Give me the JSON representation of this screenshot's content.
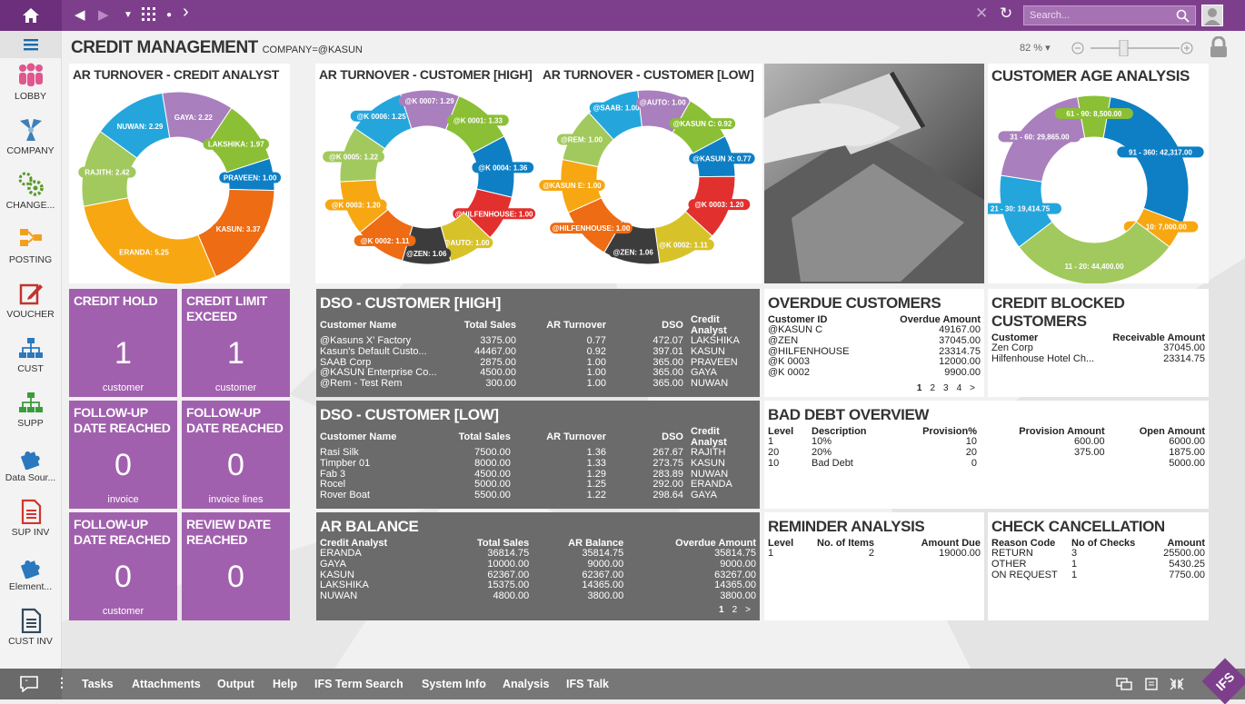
{
  "topbar": {
    "search_placeholder": "Search..."
  },
  "sidebar": {
    "items": [
      {
        "label": "LOBBY",
        "icon": "people-icon"
      },
      {
        "label": "COMPANY",
        "icon": "company-icon"
      },
      {
        "label": "CHANGE...",
        "icon": "gears-icon"
      },
      {
        "label": "POSTING",
        "icon": "posting-icon"
      },
      {
        "label": "VOUCHER",
        "icon": "edit-icon"
      },
      {
        "label": "CUST",
        "icon": "hierarchy-icon"
      },
      {
        "label": "SUPP",
        "icon": "hierarchy-icon"
      },
      {
        "label": "Data Sour...",
        "icon": "puzzle-icon"
      },
      {
        "label": "SUP INV",
        "icon": "document-icon"
      },
      {
        "label": "Element...",
        "icon": "puzzle-icon"
      },
      {
        "label": "CUST INV",
        "icon": "document-icon"
      }
    ]
  },
  "page": {
    "title": "CREDIT MANAGEMENT",
    "context": "COMPANY=@KASUN",
    "zoom": "82 %"
  },
  "charts": {
    "analyst": {
      "title": "AR TURNOVER  - CREDIT  ANALYST"
    },
    "high": {
      "title": "AR TURNOVER - CUSTOMER [HIGH]"
    },
    "low": {
      "title": "AR TURNOVER - CUSTOMER [LOW]"
    },
    "age": {
      "title": "CUSTOMER AGE ANALYSIS"
    }
  },
  "chart_data": [
    {
      "type": "pie",
      "title": "AR TURNOVER  - CREDIT  ANALYST",
      "labels": [
        "PRAVEEN",
        "KASUN",
        "ERANDA",
        "RAJITH",
        "NUWAN",
        "GAYA",
        "LAKSHIKA"
      ],
      "values": [
        1.0,
        3.37,
        5.25,
        2.42,
        2.29,
        2.22,
        1.97
      ],
      "colors": [
        "#0e7fc4",
        "#ee6c14",
        "#f7a712",
        "#a2c95d",
        "#24a6dc",
        "#a97fbd",
        "#8bbf35"
      ]
    },
    {
      "type": "pie",
      "title": "AR TURNOVER - CUSTOMER [HIGH]",
      "labels": [
        "@K 0004",
        "@HILFENHOUSE",
        "@AUTO",
        "@ZEN",
        "@K 0002",
        "@K 0003",
        "@K 0005",
        "@K 0006",
        "@K 0007",
        "@K 0001"
      ],
      "values": [
        1.36,
        1.0,
        1.0,
        1.06,
        1.11,
        1.2,
        1.22,
        1.25,
        1.29,
        1.33
      ],
      "colors": [
        "#0e7fc4",
        "#e2302e",
        "#d8c22a",
        "#3d3c3c",
        "#ee6c14",
        "#f7a712",
        "#a2c95d",
        "#24a6dc",
        "#a97fbd",
        "#8bbf35"
      ]
    },
    {
      "type": "pie",
      "title": "AR TURNOVER - CUSTOMER [LOW]",
      "labels": [
        "@KASUN X",
        "@K 0003",
        "@K 0002",
        "@ZEN",
        "@HILFENHOUSE",
        "@KASUN E",
        "@REM",
        "@SAAB",
        "@AUTO",
        "@KASUN C"
      ],
      "values": [
        0.77,
        1.2,
        1.11,
        1.06,
        1.0,
        1.0,
        1.0,
        1.0,
        1.0,
        0.92
      ],
      "colors": [
        "#0e7fc4",
        "#e2302e",
        "#d8c22a",
        "#3d3c3c",
        "#ee6c14",
        "#f7a712",
        "#a2c95d",
        "#24a6dc",
        "#a97fbd",
        "#8bbf35"
      ]
    },
    {
      "type": "pie",
      "title": "CUSTOMER AGE ANALYSIS",
      "labels": [
        "91 - 360",
        "1 - 10",
        "11 - 20",
        "21 - 30",
        "31 - 60",
        "61 - 90"
      ],
      "values": [
        42317.0,
        7000.0,
        44400.0,
        19414.75,
        29865.0,
        8500.0
      ],
      "colors": [
        "#0e7fc4",
        "#f7a712",
        "#a2c95d",
        "#24a6dc",
        "#a97fbd",
        "#8bbf35"
      ]
    }
  ],
  "tiles": [
    {
      "title": "CREDIT HOLD",
      "value": "1",
      "sub": "customer"
    },
    {
      "title": "CREDIT LIMIT EXCEED",
      "value": "1",
      "sub": "customer"
    },
    {
      "title": "FOLLOW-UP DATE REACHED",
      "value": "0",
      "sub": "invoice"
    },
    {
      "title": "FOLLOW-UP DATE REACHED",
      "value": "0",
      "sub": "invoice lines"
    },
    {
      "title": "FOLLOW-UP DATE REACHED",
      "value": "0",
      "sub": "customer"
    },
    {
      "title": "REVIEW DATE REACHED",
      "value": "0",
      "sub": ""
    }
  ],
  "dso_high": {
    "title": "DSO - CUSTOMER [HIGH]",
    "headers": [
      "Customer Name",
      "Total Sales",
      "AR Turnover",
      "DSO",
      "Credit Analyst"
    ],
    "rows": [
      [
        "@Kasuns X' Factory",
        "3375.00",
        "0.77",
        "472.07",
        "LAKSHIKA"
      ],
      [
        "Kasun's Default Custo...",
        "44467.00",
        "0.92",
        "397.01",
        "KASUN"
      ],
      [
        "SAAB Corp",
        "2875.00",
        "1.00",
        "365.00",
        "PRAVEEN"
      ],
      [
        "@KASUN Enterprise Co...",
        "4500.00",
        "1.00",
        "365.00",
        "GAYA"
      ],
      [
        "@Rem - Test Rem",
        "300.00",
        "1.00",
        "365.00",
        "NUWAN"
      ]
    ]
  },
  "dso_low": {
    "title": "DSO - CUSTOMER [LOW]",
    "headers": [
      "Customer Name",
      "Total Sales",
      "AR Turnover",
      "DSO",
      "Credit Analyst"
    ],
    "rows": [
      [
        "Rasi Silk",
        "7500.00",
        "1.36",
        "267.67",
        "RAJITH"
      ],
      [
        "Timpber 01",
        "8000.00",
        "1.33",
        "273.75",
        "KASUN"
      ],
      [
        "Fab 3",
        "4500.00",
        "1.29",
        "283.89",
        "NUWAN"
      ],
      [
        "Rocel",
        "5000.00",
        "1.25",
        "292.00",
        "ERANDA"
      ],
      [
        "Rover Boat",
        "5500.00",
        "1.22",
        "298.64",
        "GAYA"
      ]
    ]
  },
  "ar_balance": {
    "title": "AR BALANCE",
    "headers": [
      "Credit Analyst",
      "Total Sales",
      "AR Balance",
      "Overdue Amount"
    ],
    "rows": [
      [
        "ERANDA",
        "36814.75",
        "35814.75",
        "35814.75"
      ],
      [
        "GAYA",
        "10000.00",
        "9000.00",
        "9000.00"
      ],
      [
        "KASUN",
        "62367.00",
        "62367.00",
        "63267.00"
      ],
      [
        "LAKSHIKA",
        "15375.00",
        "14365.00",
        "14365.00"
      ],
      [
        "NUWAN",
        "4800.00",
        "3800.00",
        "3800.00"
      ]
    ],
    "pages": [
      "1",
      "2",
      ">"
    ]
  },
  "overdue": {
    "title": "OVERDUE CUSTOMERS",
    "headers": [
      "Customer ID",
      "Overdue Amount"
    ],
    "rows": [
      [
        "@KASUN C",
        "49167.00"
      ],
      [
        "@ZEN",
        "37045.00"
      ],
      [
        "@HILFENHOUSE",
        "23314.75"
      ],
      [
        "@K 0003",
        "12000.00"
      ],
      [
        "@K 0002",
        "9900.00"
      ]
    ],
    "pages": [
      "1",
      "2",
      "3",
      "4",
      ">"
    ]
  },
  "blocked": {
    "title": "CREDIT BLOCKED CUSTOMERS",
    "headers": [
      "Customer",
      "Receivable Amount"
    ],
    "rows": [
      [
        "Zen Corp",
        "37045.00"
      ],
      [
        "Hilfenhouse Hotel Ch...",
        "23314.75"
      ]
    ]
  },
  "bad_debt": {
    "title": "BAD DEBT OVERVIEW",
    "headers": [
      "Level",
      "Description",
      "Provision%",
      "Provision Amount",
      "Open Amount"
    ],
    "rows": [
      [
        "1",
        "10%",
        "10",
        "600.00",
        "6000.00"
      ],
      [
        "20",
        "20%",
        "20",
        "375.00",
        "1875.00"
      ],
      [
        "10",
        "Bad Debt",
        "0",
        "",
        "5000.00"
      ]
    ]
  },
  "reminder": {
    "title": "REMINDER ANALYSIS",
    "headers": [
      "Level",
      "No. of Items",
      "Amount Due"
    ],
    "rows": [
      [
        "1",
        "2",
        "19000.00"
      ]
    ]
  },
  "check": {
    "title": "CHECK CANCELLATION",
    "headers": [
      "Reason Code",
      "No of Checks",
      "Amount"
    ],
    "rows": [
      [
        "RETURN",
        "3",
        "25500.00"
      ],
      [
        "OTHER",
        "1",
        "5430.25"
      ],
      [
        "ON REQUEST",
        "1",
        "7750.00"
      ]
    ]
  },
  "bottombar": {
    "items": [
      "Tasks",
      "Attachments",
      "Output",
      "Help",
      "IFS Term Search",
      "System Info",
      "Analysis",
      "IFS Talk"
    ],
    "logo": "IFS"
  }
}
